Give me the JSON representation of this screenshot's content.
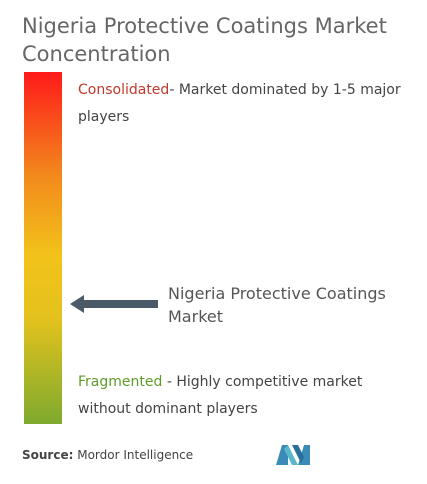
{
  "title": "Nigeria Protective Coatings Market Concentration",
  "consolidated": {
    "label": "Consolidated",
    "description": "- Market dominated by 1-5 major players"
  },
  "fragmented": {
    "label": "Fragmented",
    "description": " - Highly competitive market without dominant players"
  },
  "pointer_label": "Nigeria Protective Coatings Market",
  "source": {
    "prefix": "Source:",
    "name": " Mordor Intelligence"
  },
  "colors": {
    "top": "#ff1a1a",
    "middle": "#f2c21a",
    "bottom": "#7eaa2e",
    "arrow": "#4a5a68"
  },
  "chart_data": {
    "type": "table",
    "scale": [
      "Consolidated",
      "Fragmented"
    ],
    "market_position": 0.66
  }
}
